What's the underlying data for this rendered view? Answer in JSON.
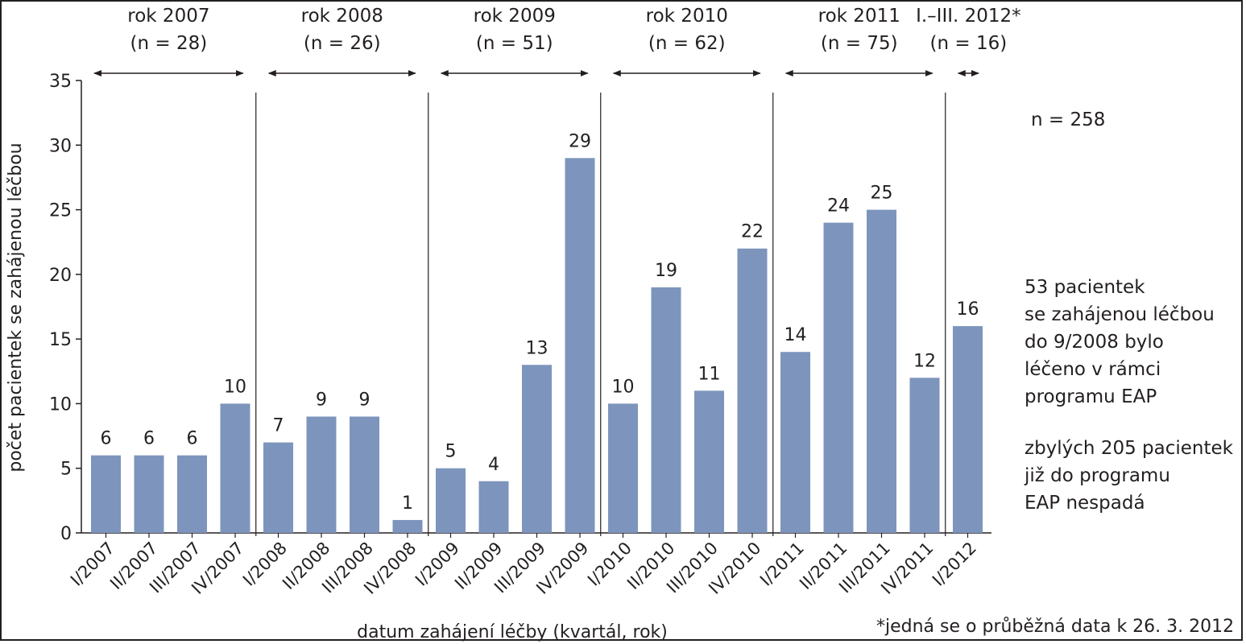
{
  "chart_data": {
    "type": "bar",
    "xlabel": "datum zahájení léčby (kvartál, rok)",
    "ylabel": "počet pacientek se zahájenou léčbou",
    "ylim": [
      0,
      35
    ],
    "yticks": [
      "0",
      "5",
      "10",
      "15",
      "20",
      "25",
      "30",
      "35"
    ],
    "bar_color": "#7d95bc",
    "categories": [
      "I/2007",
      "II/2007",
      "III/2007",
      "IV/2007",
      "I/2008",
      "II/2008",
      "III/2008",
      "IV/2008",
      "I/2009",
      "II/2009",
      "III/2009",
      "IV/2009",
      "I/2010",
      "II/2010",
      "III/2010",
      "IV/2010",
      "I/2011",
      "II/2011",
      "III/2011",
      "IV/2011",
      "I/2012"
    ],
    "values": [
      6,
      6,
      6,
      10,
      7,
      9,
      9,
      1,
      5,
      4,
      13,
      29,
      10,
      19,
      11,
      22,
      14,
      24,
      25,
      12,
      16
    ],
    "groups": [
      {
        "label": "rok 2007",
        "n": "(n = 28)"
      },
      {
        "label": "rok 2008",
        "n": "(n = 26)"
      },
      {
        "label": "rok 2009",
        "n": "(n = 51)"
      },
      {
        "label": "rok 2010",
        "n": "(n = 62)"
      },
      {
        "label": "rok 2011",
        "n": "(n = 75)"
      },
      {
        "label": "I.–III. 2012*",
        "n": "(n = 16)"
      }
    ]
  },
  "annotations": {
    "total": "n = 258",
    "note1": [
      "53 pacientek",
      "se zahájenou léčbou",
      "do 9/2008 bylo",
      "léčeno v rámci",
      "programu EAP"
    ],
    "note2": [
      "zbylých 205 pacientek",
      "již do programu",
      "EAP nespadá"
    ],
    "footnote": "*jedná se o průběžná data k 26. 3. 2012"
  }
}
